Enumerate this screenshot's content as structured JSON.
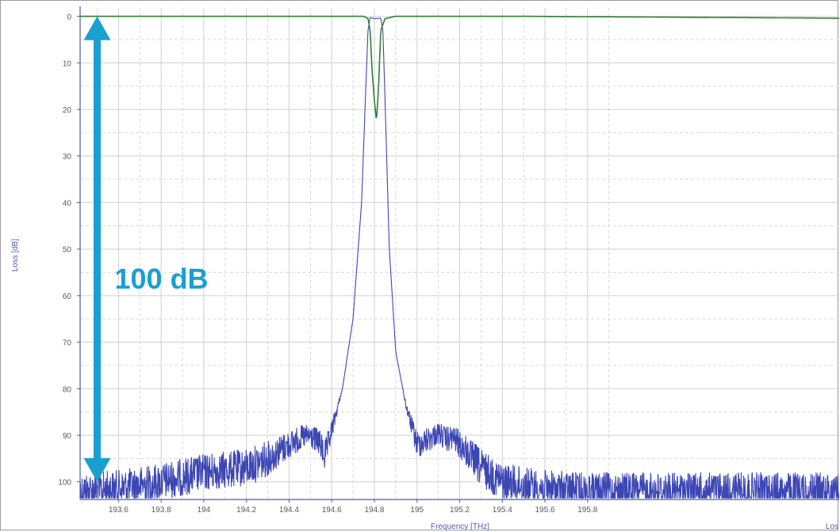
{
  "chart_data": {
    "type": "line",
    "xlabel": "Frequency [THz]",
    "ylabel": "Loss [dB]",
    "right_axis_label": "Los",
    "xlim": [
      193.42,
      196.98
    ],
    "ylim": [
      103.8,
      -1.8
    ],
    "y_inverted": true,
    "grid": true,
    "x_ticks": [
      193.6,
      193.8,
      194,
      194.2,
      194.4,
      194.6,
      194.8,
      195,
      195.2,
      195.4,
      195.6,
      195.8
    ],
    "x_tick_labels": [
      "193.6",
      "193.8",
      "194",
      "194.2",
      "194.4",
      "194.6",
      "194.8",
      "195",
      "195.2",
      "195.4",
      "195.6",
      "195.8"
    ],
    "y_ticks": [
      0,
      10,
      20,
      30,
      40,
      50,
      60,
      70,
      80,
      90,
      100
    ],
    "y_tick_labels": [
      "0",
      "10",
      "20",
      "30",
      "40",
      "50",
      "60",
      "70",
      "80",
      "90",
      "100"
    ],
    "series": [
      {
        "color": "#3c46b4",
        "noisy": true,
        "x": [
          193.42,
          193.6,
          193.8,
          194.0,
          194.2,
          194.3,
          194.4,
          194.46,
          194.5,
          194.54,
          194.57,
          194.6,
          194.65,
          194.7,
          194.74,
          194.76,
          194.77,
          194.78,
          194.8,
          194.83,
          194.84,
          194.85,
          194.87,
          194.9,
          194.95,
          195.0,
          195.05,
          195.1,
          195.14,
          195.17,
          195.2,
          195.3,
          195.4,
          195.6,
          195.8,
          196.0,
          196.98
        ],
        "y": [
          102,
          101.5,
          100,
          98,
          97,
          95,
          92,
          90.5,
          90.2,
          91.5,
          94.5,
          89,
          80,
          65,
          40,
          15,
          3,
          0.3,
          0.5,
          0.4,
          3,
          18,
          50,
          72,
          84,
          92,
          91,
          89.5,
          91,
          90.5,
          92,
          97,
          100,
          101.5,
          102,
          102,
          102
        ]
      },
      {
        "color": "#2f7f35",
        "noisy": false,
        "x": [
          193.42,
          194.7,
          194.75,
          194.77,
          194.78,
          194.79,
          194.8,
          194.81,
          194.82,
          194.83,
          194.85,
          194.9,
          195.5,
          196.98
        ],
        "y": [
          0,
          0,
          0,
          0.5,
          3,
          12,
          18,
          22.5,
          15,
          3,
          0.5,
          0,
          0,
          0.4
        ]
      }
    ],
    "annotation": {
      "text": "100 dB",
      "x": 193.5,
      "y_from": 0,
      "y_to": 100,
      "color": "#1a9fd1"
    }
  }
}
